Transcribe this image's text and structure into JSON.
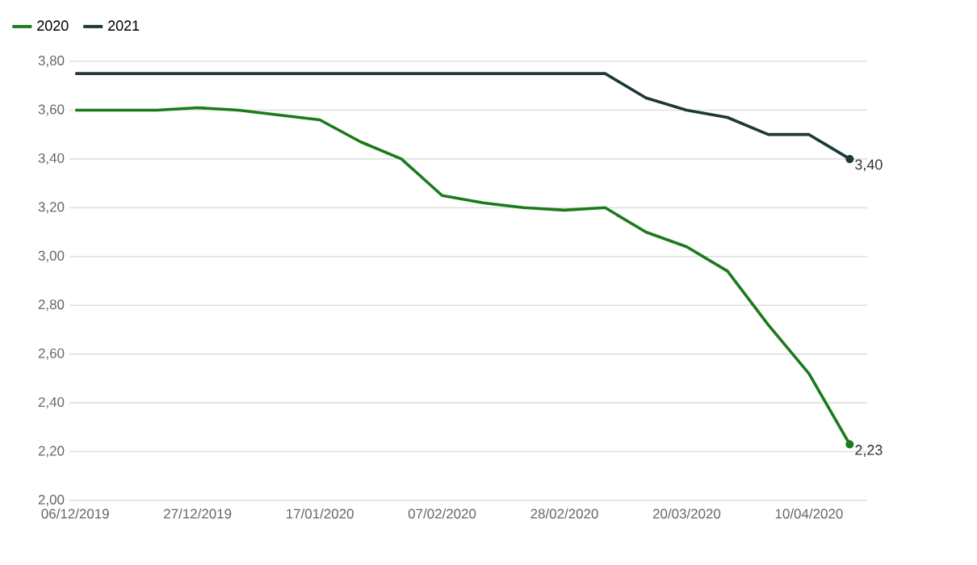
{
  "chart_data": {
    "type": "line",
    "x": [
      "2019-12-06",
      "2019-12-13",
      "2019-12-20",
      "2019-12-27",
      "2020-01-03",
      "2020-01-10",
      "2020-01-17",
      "2020-01-24",
      "2020-01-31",
      "2020-02-07",
      "2020-02-14",
      "2020-02-21",
      "2020-02-28",
      "2020-03-06",
      "2020-03-13",
      "2020-03-20",
      "2020-03-27",
      "2020-04-03",
      "2020-04-10",
      "2020-04-17"
    ],
    "series": [
      {
        "name": "2020",
        "color": "#1b7a1b",
        "values": [
          3.6,
          3.6,
          3.6,
          3.61,
          3.6,
          3.58,
          3.56,
          3.47,
          3.4,
          3.25,
          3.22,
          3.2,
          3.19,
          3.2,
          3.1,
          3.04,
          2.94,
          2.72,
          2.52,
          2.23
        ],
        "value_labels": [
          null,
          null,
          null,
          null,
          null,
          null,
          null,
          null,
          null,
          null,
          null,
          null,
          null,
          null,
          null,
          null,
          null,
          null,
          null,
          "2,23"
        ]
      },
      {
        "name": "2021",
        "color": "#1c3838",
        "values": [
          3.75,
          3.75,
          3.75,
          3.75,
          3.75,
          3.75,
          3.75,
          3.75,
          3.75,
          3.75,
          3.75,
          3.75,
          3.75,
          3.75,
          3.65,
          3.6,
          3.57,
          3.5,
          3.5,
          3.4
        ],
        "value_labels": [
          null,
          null,
          null,
          null,
          null,
          null,
          null,
          null,
          null,
          null,
          null,
          null,
          null,
          null,
          null,
          null,
          null,
          null,
          null,
          "3,40"
        ]
      }
    ],
    "xlim": [
      "2019-12-05",
      "2020-04-20"
    ],
    "xticks": [
      {
        "value": "2019-12-06",
        "label": "06/12/2019"
      },
      {
        "value": "2019-12-27",
        "label": "27/12/2019"
      },
      {
        "value": "2020-01-17",
        "label": "17/01/2020"
      },
      {
        "value": "2020-02-07",
        "label": "07/02/2020"
      },
      {
        "value": "2020-02-28",
        "label": "28/02/2020"
      },
      {
        "value": "2020-03-20",
        "label": "20/03/2020"
      },
      {
        "value": "2020-04-10",
        "label": "10/04/2020"
      }
    ],
    "ylim": [
      2.0,
      3.8
    ],
    "yticks": [
      {
        "value": 2.0,
        "label": "2,00"
      },
      {
        "value": 2.2,
        "label": "2,20"
      },
      {
        "value": 2.4,
        "label": "2,40"
      },
      {
        "value": 2.6,
        "label": "2,60"
      },
      {
        "value": 2.8,
        "label": "2,80"
      },
      {
        "value": 3.0,
        "label": "3,00"
      },
      {
        "value": 3.2,
        "label": "3,20"
      },
      {
        "value": 3.4,
        "label": "3,40"
      },
      {
        "value": 3.6,
        "label": "3,60"
      },
      {
        "value": 3.8,
        "label": "3,80"
      }
    ],
    "grid": "y",
    "legend": "top left"
  }
}
